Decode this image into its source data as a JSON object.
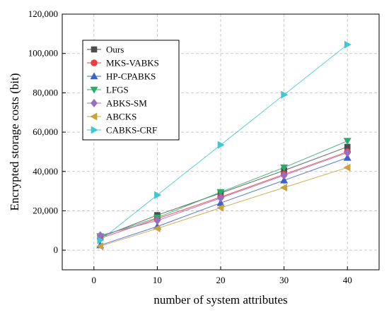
{
  "chart_data": {
    "type": "line",
    "xlabel": "number of system attributes",
    "ylabel": "Encrypted storage costs (bit)",
    "xlim": [
      -5,
      45
    ],
    "ylim": [
      -10000,
      120000
    ],
    "x_ticks": [
      0,
      10,
      20,
      30,
      40
    ],
    "y_ticks": [
      0,
      20000,
      40000,
      60000,
      80000,
      100000,
      120000
    ],
    "x_tick_labels": [
      "0",
      "10",
      "20",
      "30",
      "40"
    ],
    "y_tick_labels": [
      "0",
      "20,000",
      "40,000",
      "60,000",
      "80,000",
      "100,000",
      "120,000"
    ],
    "grid": true,
    "legend_position": "top-left",
    "x": [
      1,
      10,
      20,
      30,
      40
    ],
    "series": [
      {
        "name": "Ours",
        "values": [
          6500,
          17800,
          29000,
          40500,
          52500
        ],
        "color": "#4d4d4d",
        "marker": "square"
      },
      {
        "name": "MKS-VABKS",
        "values": [
          6000,
          16000,
          27000,
          38500,
          50000
        ],
        "color": "#ee3b3b",
        "marker": "circle"
      },
      {
        "name": "HP-CPABKS",
        "values": [
          2500,
          12000,
          24000,
          35500,
          47000
        ],
        "color": "#3a63c9",
        "marker": "triangle-up"
      },
      {
        "name": " LFGS",
        "values": [
          7000,
          16500,
          29500,
          42000,
          55500
        ],
        "color": "#2eab6b",
        "marker": "triangle-down"
      },
      {
        "name": " ABKS-SM",
        "values": [
          7500,
          15000,
          26500,
          38000,
          49500
        ],
        "color": "#9b6cc4",
        "marker": "diamond"
      },
      {
        "name": "ABCKS",
        "values": [
          2000,
          11000,
          21500,
          31800,
          42000
        ],
        "color": "#caa13a",
        "marker": "triangle-left"
      },
      {
        "name": "CABKS-CRF",
        "values": [
          5000,
          28000,
          53500,
          79000,
          104500
        ],
        "color": "#3fc7d3",
        "marker": "triangle-right"
      }
    ]
  }
}
